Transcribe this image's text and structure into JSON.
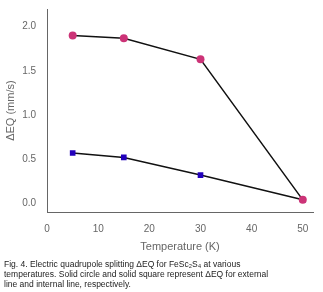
{
  "chart_data": {
    "type": "line",
    "x": [
      5,
      15,
      30,
      50
    ],
    "series": [
      {
        "color": "#cc3377",
        "marker": "circle",
        "values": [
          1.9,
          1.87,
          1.63,
          0.04
        ]
      },
      {
        "color": "#2200bb",
        "marker": "square",
        "values": [
          0.57,
          0.52,
          0.32,
          0.04
        ]
      }
    ],
    "color": "#111111",
    "xlabel": "Temperature (K)",
    "ylabel": "ΔEQ (mm/s)",
    "xlim": [
      0,
      52
    ],
    "ylim": [
      -0.1,
      2.2
    ],
    "xticks": [
      0,
      10,
      20,
      30,
      40,
      50
    ],
    "yticks": [
      {
        "value": 0.0,
        "label": "0.0"
      },
      0.5,
      {
        "value": 1.0,
        "label": "1.0"
      },
      1.5,
      {
        "value": 2.0,
        "label": "2.0"
      }
    ],
    "grid": false,
    "annotations": [
      "Fig. 4. Electric quadrupole splitting ΔEQ for FeSc₂S₄ at various",
      "temperatures. Solid circle and solid square represent ΔEQ for external",
      "line and internal line, respectively."
    ]
  }
}
